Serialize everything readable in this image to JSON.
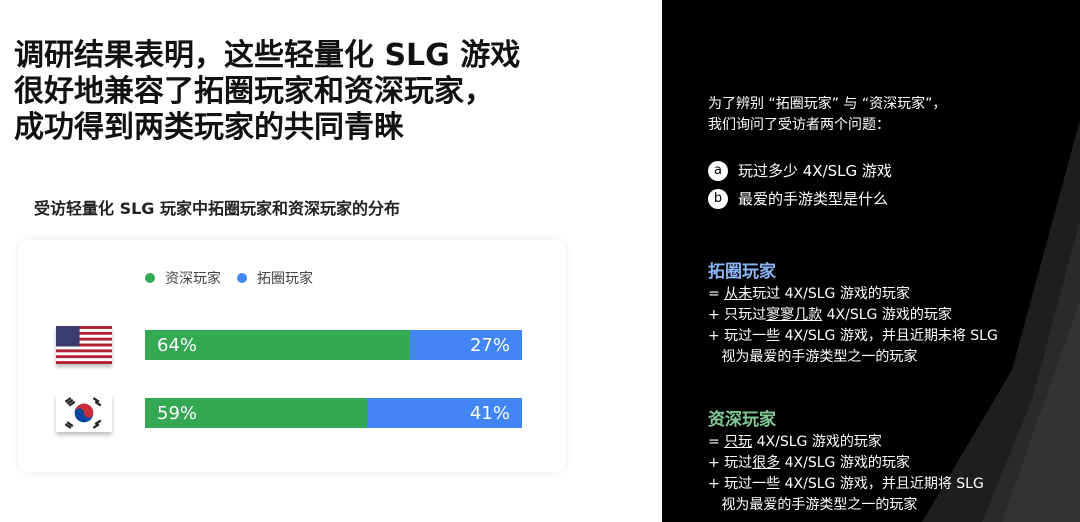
{
  "title": [
    "调研结果表明，这些轻量化 SLG 游戏",
    "很好地兼容了拓圈玩家和资深玩家，",
    "成功得到两类玩家的共同青睐"
  ],
  "chart_data": {
    "type": "bar",
    "stacked": true,
    "orientation": "horizontal",
    "title": "受访轻量化 SLG 玩家中拓圈玩家和资深玩家的分布",
    "categories": [
      "United States flag",
      "South Korea flag"
    ],
    "series": [
      {
        "name": "资深玩家",
        "values": [
          64,
          59
        ],
        "labels": [
          "64%",
          "59%"
        ],
        "color": "#34a853"
      },
      {
        "name": "拓圈玩家",
        "values": [
          27,
          41
        ],
        "labels": [
          "27%",
          "41%"
        ],
        "color": "#4285f4"
      }
    ],
    "legend": "top"
  },
  "panel": {
    "intro": [
      "为了辨别 “拓圈玩家” 与 “资深玩家”，",
      "我们询问了受访者两个问题："
    ],
    "questions": [
      {
        "key": "a",
        "text": "玩过多少 4X/SLG 游戏"
      },
      {
        "key": "b",
        "text": "最爱的手游类型是什么"
      }
    ],
    "expand": {
      "heading": "拓圈玩家",
      "color": "#8ab4f8",
      "lines": [
        [
          "= ",
          "从未",
          "玩过 4X/SLG 游戏的玩家"
        ],
        [
          "+ 只玩过",
          "寥寥几款",
          " 4X/SLG 游戏的玩家"
        ],
        [
          "+ 玩过一些 4X/SLG 游戏，并且近期未将 SLG",
          "",
          ""
        ],
        [
          "   视为最爱的手游类型之一的玩家",
          "",
          ""
        ]
      ]
    },
    "veteran": {
      "heading": "资深玩家",
      "color": "#81c995",
      "lines": [
        [
          "= ",
          "只玩",
          " 4X/SLG 游戏的玩家"
        ],
        [
          "+ 玩过",
          "很多",
          " 4X/SLG 游戏的玩家"
        ],
        [
          "+ 玩过一些 4X/SLG 游戏，并且近期将 SLG",
          "",
          ""
        ],
        [
          "   视为最爱的手游类型之一的玩家",
          "",
          ""
        ]
      ]
    }
  }
}
